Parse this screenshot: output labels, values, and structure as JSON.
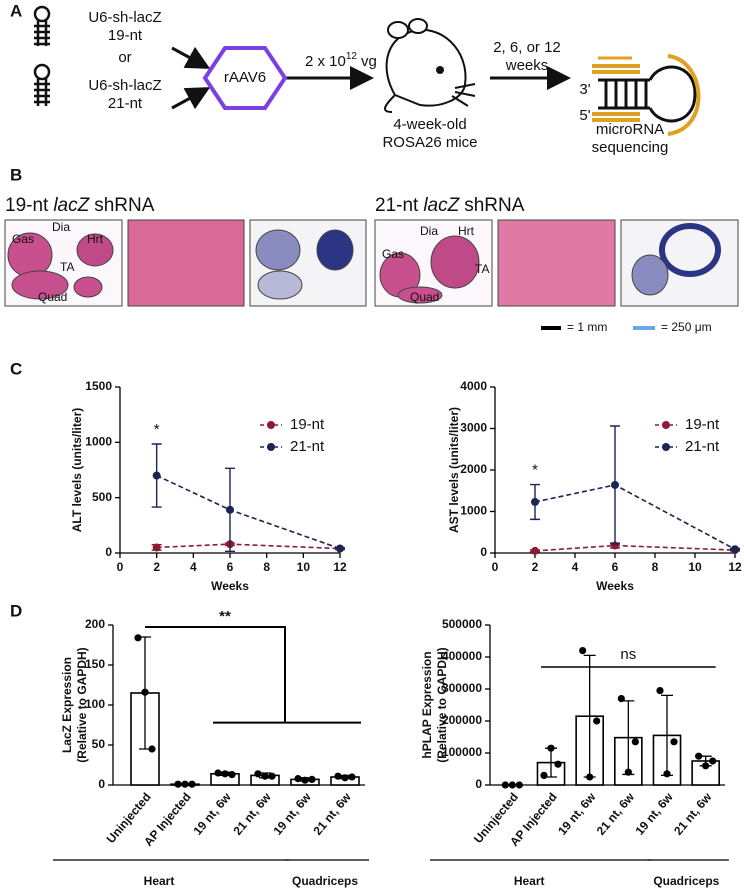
{
  "panel_a": {
    "label": "A",
    "construct_1": [
      "U6-sh-lacZ",
      "19-nt"
    ],
    "or": "or",
    "construct_2": [
      "U6-sh-lacZ",
      "21-nt"
    ],
    "vector": "rAAV6",
    "dose": "2 x 10",
    "dose_exponent": "12",
    "dose_unit": "vg",
    "mice": [
      "4-week-old",
      "ROSA26 mice"
    ],
    "timepoints": [
      "2, 6, or 12",
      "weeks"
    ],
    "rna_3": "3'",
    "rna_5": "5'",
    "readout": [
      "microRNA",
      "sequencing"
    ]
  },
  "panel_b": {
    "label": "B",
    "groups": [
      {
        "title": [
          "19-nt",
          "lacZ",
          "shRNA"
        ],
        "tissues": [
          "Gas",
          "Dia",
          "Hrt",
          "TA",
          "Quad"
        ]
      },
      {
        "title": [
          "21-nt",
          "lacZ",
          "shRNA"
        ],
        "tissues": [
          "Gas",
          "Dia",
          "Hrt",
          "TA",
          "Quad"
        ]
      }
    ],
    "scale_black": "= 1 mm",
    "scale_blue": "= 250 μm"
  },
  "panel_c_label": "C",
  "panel_d_label": "D",
  "chart_data": [
    {
      "type": "line",
      "x": [
        2,
        6,
        12
      ],
      "xlim": [
        0,
        12
      ],
      "xticks": [
        0,
        2,
        4,
        6,
        8,
        10,
        12
      ],
      "ylim": [
        0,
        1500
      ],
      "yticks": [
        0,
        500,
        1000,
        1500
      ],
      "xlabel": "Weeks",
      "ylabel": "ALT levels (units/liter)",
      "annotation": "*",
      "series": [
        {
          "name": "19-nt",
          "color": "#8c1c34",
          "values": [
            50,
            80,
            40
          ],
          "errors": [
            25,
            10,
            8
          ]
        },
        {
          "name": "21-nt",
          "color": "#1b2452",
          "values": [
            700,
            390,
            40
          ],
          "errors": [
            285,
            375,
            8
          ]
        }
      ]
    },
    {
      "type": "line",
      "x": [
        2,
        6,
        12
      ],
      "xlim": [
        0,
        12
      ],
      "xticks": [
        0,
        2,
        4,
        6,
        8,
        10,
        12
      ],
      "ylim": [
        0,
        4000
      ],
      "yticks": [
        0,
        1000,
        2000,
        3000,
        4000
      ],
      "xlabel": "Weeks",
      "ylabel": "AST levels (units/liter)",
      "annotation": "*",
      "series": [
        {
          "name": "19-nt",
          "color": "#8c1c34",
          "values": [
            50,
            180,
            70
          ],
          "errors": [
            20,
            60,
            20
          ]
        },
        {
          "name": "21-nt",
          "color": "#1b2452",
          "values": [
            1230,
            1640,
            90
          ],
          "errors": [
            420,
            1420,
            20
          ]
        }
      ]
    },
    {
      "type": "bar",
      "categories": [
        "Uninjected",
        "AP Injected",
        "19 nt, 6w",
        "21 nt, 6w",
        "19 nt, 6w",
        "21 nt, 6w"
      ],
      "values": [
        115,
        1,
        14,
        12,
        7,
        10
      ],
      "errors": [
        70,
        0.5,
        2,
        3,
        2,
        2
      ],
      "points": [
        [
          184,
          116,
          45
        ],
        [
          1,
          1,
          1
        ],
        [
          15,
          14,
          13
        ],
        [
          14,
          11,
          11
        ],
        [
          8,
          6,
          7
        ],
        [
          11,
          9,
          10
        ]
      ],
      "ylim": [
        0,
        200
      ],
      "yticks": [
        0,
        50,
        100,
        150,
        200
      ],
      "ylabel": [
        "LacZ Expression",
        "(Relative to GAPDH)"
      ],
      "groups": [
        "Heart",
        "Quadriceps"
      ],
      "annotation": "**"
    },
    {
      "type": "bar",
      "categories": [
        "Uninjected",
        "AP Injected",
        "19 nt, 6w",
        "21 nt, 6w",
        "19 nt, 6w",
        "21 nt, 6w"
      ],
      "values": [
        0,
        70000,
        215000,
        148000,
        155000,
        75000
      ],
      "errors": [
        0,
        45000,
        190000,
        115000,
        125000,
        15000
      ],
      "points": [
        [
          0,
          0,
          0
        ],
        [
          30000,
          115000,
          65000
        ],
        [
          420000,
          25000,
          200000
        ],
        [
          270000,
          40000,
          135000
        ],
        [
          295000,
          35000,
          135000
        ],
        [
          90000,
          60000,
          75000
        ]
      ],
      "ylim": [
        0,
        500000
      ],
      "yticks": [
        0,
        100000,
        200000,
        300000,
        400000,
        500000
      ],
      "ylabel": [
        "hPLAP Expression",
        "(Relative to GAPDH)"
      ],
      "groups": [
        "Heart",
        "Quadriceps"
      ],
      "annotation": "ns"
    }
  ]
}
